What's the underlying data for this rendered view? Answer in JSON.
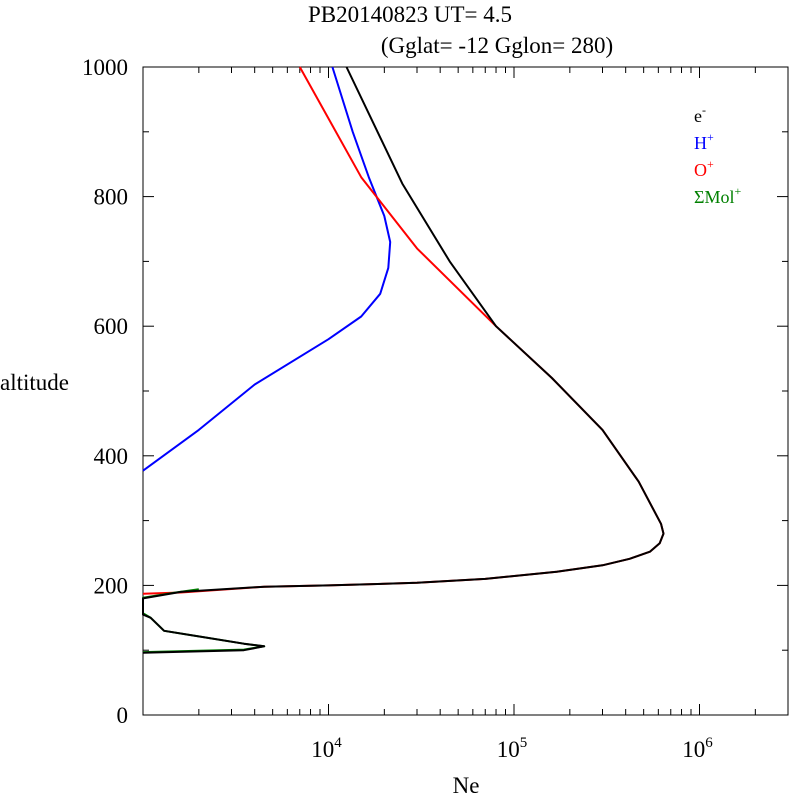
{
  "chart_data": {
    "type": "line",
    "title": "PB20140823   UT=  4.5",
    "subtitle": "(Gglat= -12   Gglon=  280)",
    "xlabel": "Ne",
    "ylabel": "altitude",
    "x_scale": "log",
    "xlim": [
      1000,
      3000000
    ],
    "ylim": [
      0,
      1000
    ],
    "x_ticks": [
      {
        "value": 10000,
        "base": "10",
        "exp": "4"
      },
      {
        "value": 100000,
        "base": "10",
        "exp": "5"
      },
      {
        "value": 1000000,
        "base": "10",
        "exp": "6"
      }
    ],
    "y_ticks": [
      0,
      200,
      400,
      600,
      800,
      1000
    ],
    "grid": false,
    "legend_position": "top-right",
    "series": [
      {
        "name": "e-",
        "label_base": "e",
        "label_sup": "-",
        "color": "#000000",
        "points": [
          [
            1000,
            96
          ],
          [
            3500,
            100
          ],
          [
            4500,
            106
          ],
          [
            3500,
            110
          ],
          [
            1300,
            130
          ],
          [
            1100,
            150
          ],
          [
            1000,
            155
          ],
          [
            1000,
            180
          ],
          [
            1600,
            190
          ],
          [
            4500,
            198
          ],
          [
            10000,
            200
          ],
          [
            30000,
            204
          ],
          [
            70000,
            210
          ],
          [
            170000,
            221
          ],
          [
            300000,
            231
          ],
          [
            420000,
            241
          ],
          [
            540000,
            252
          ],
          [
            610000,
            265
          ],
          [
            640000,
            280
          ],
          [
            620000,
            295
          ],
          [
            470000,
            360
          ],
          [
            300000,
            440
          ],
          [
            160000,
            520
          ],
          [
            80000,
            600
          ],
          [
            45000,
            700
          ],
          [
            25000,
            820
          ],
          [
            12500,
            1000
          ]
        ]
      },
      {
        "name": "H+",
        "label_base": "H",
        "label_sup": "+",
        "color": "#0000ff",
        "points": [
          [
            1000,
            377
          ],
          [
            2000,
            440
          ],
          [
            4000,
            510
          ],
          [
            10000,
            580
          ],
          [
            15000,
            615
          ],
          [
            19000,
            650
          ],
          [
            21000,
            690
          ],
          [
            21500,
            730
          ],
          [
            20000,
            770
          ],
          [
            16500,
            830
          ],
          [
            13500,
            900
          ],
          [
            10500,
            1000
          ]
        ]
      },
      {
        "name": "O+",
        "label_base": "O",
        "label_sup": "+",
        "color": "#ff0000",
        "points": [
          [
            1000,
            187
          ],
          [
            1600,
            189
          ],
          [
            4500,
            198
          ],
          [
            10000,
            200
          ],
          [
            30000,
            204
          ],
          [
            70000,
            210
          ],
          [
            170000,
            221
          ],
          [
            300000,
            231
          ],
          [
            420000,
            241
          ],
          [
            540000,
            252
          ],
          [
            610000,
            265
          ],
          [
            640000,
            280
          ],
          [
            620000,
            295
          ],
          [
            470000,
            360
          ],
          [
            300000,
            440
          ],
          [
            160000,
            520
          ],
          [
            80000,
            600
          ],
          [
            30000,
            720
          ],
          [
            15000,
            830
          ],
          [
            7000,
            1000
          ]
        ]
      },
      {
        "name": "ΣMol+",
        "label_base": "ΣMol",
        "label_sup": "+",
        "color": "#008000",
        "points": [
          [
            1000,
            97
          ],
          [
            3500,
            101
          ],
          [
            4500,
            106
          ],
          [
            3500,
            110
          ],
          [
            1300,
            130
          ],
          [
            1100,
            150
          ],
          [
            1000,
            157
          ],
          [
            1000,
            181
          ],
          [
            1500,
            189
          ],
          [
            2000,
            194
          ]
        ]
      }
    ]
  }
}
